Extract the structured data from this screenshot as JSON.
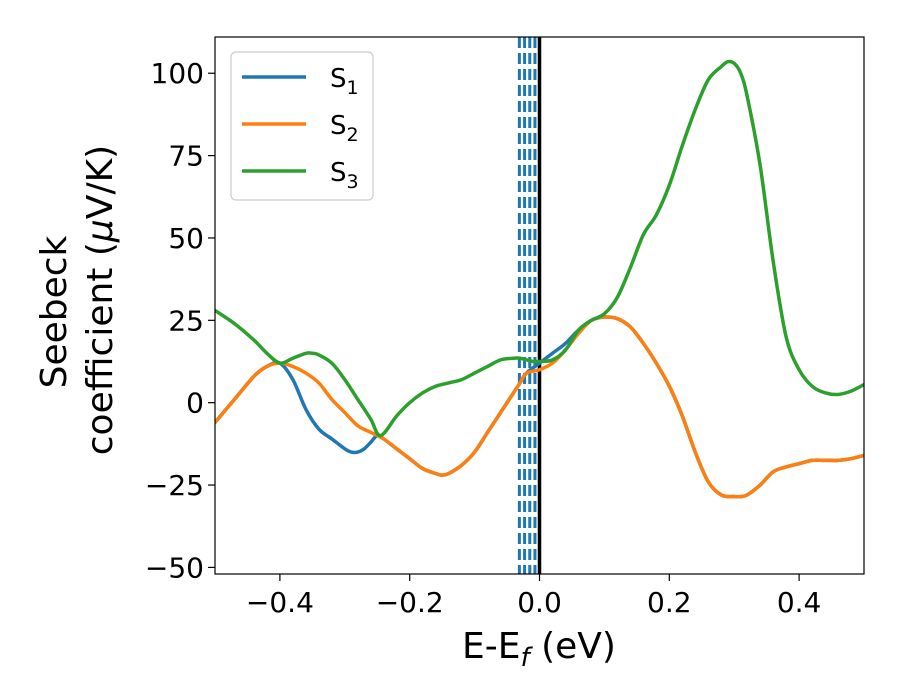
{
  "chart_data": {
    "type": "line",
    "xlabel": "E-E",
    "xlabel_sub": "f",
    "xlabel_suffix": " (eV)",
    "ylabel_line1": "Seebeck",
    "ylabel_line2": "coefficient  (",
    "ylabel_mu": "μ",
    "ylabel_unit": "V/K)",
    "xlim": [
      -0.5,
      0.5
    ],
    "ylim": [
      -52,
      111
    ],
    "xticks": [
      -0.4,
      -0.2,
      0.0,
      0.2,
      0.4
    ],
    "xtick_labels": [
      "−0.4",
      "−0.2",
      "0.0",
      "0.2",
      "0.4"
    ],
    "yticks": [
      -50,
      -25,
      0,
      25,
      50,
      75,
      100
    ],
    "ytick_labels": [
      "−50",
      "−25",
      "0",
      "25",
      "50",
      "75",
      "100"
    ],
    "grid": false,
    "legend_position": "top-left",
    "series": [
      {
        "name": "S",
        "sub": "1",
        "color": "#1f77b4",
        "x": [
          -0.5,
          -0.47,
          -0.44,
          -0.42,
          -0.4,
          -0.38,
          -0.36,
          -0.34,
          -0.32,
          -0.3,
          -0.29,
          -0.28,
          -0.27,
          -0.26,
          -0.25,
          -0.24,
          -0.22,
          -0.2,
          -0.18,
          -0.16,
          -0.15,
          -0.14,
          -0.12,
          -0.1,
          -0.08,
          -0.06,
          -0.04,
          -0.03,
          -0.02,
          0.0,
          0.02,
          0.04,
          0.06,
          0.08,
          0.1,
          0.12,
          0.14,
          0.16,
          0.18,
          0.2,
          0.22,
          0.24,
          0.26,
          0.28,
          0.3,
          0.31,
          0.32,
          0.34,
          0.36,
          0.38,
          0.4,
          0.42,
          0.44,
          0.46,
          0.48,
          0.5
        ],
        "y": [
          -6,
          1,
          8,
          11,
          12,
          7,
          -2,
          -8,
          -11,
          -14,
          -15,
          -15,
          -14,
          -12,
          -10,
          -11,
          -14,
          -17,
          -20,
          -21.5,
          -22,
          -21.5,
          -19,
          -15,
          -9,
          -3,
          3,
          6,
          9,
          12,
          15,
          18,
          22,
          25,
          26,
          25.5,
          23,
          18,
          12,
          5,
          -4,
          -15,
          -24,
          -28,
          -28.5,
          -28.5,
          -28,
          -25,
          -21,
          -19.5,
          -18.5,
          -17.5,
          -17.5,
          -17.5,
          -17,
          -16
        ]
      },
      {
        "name": "S",
        "sub": "2",
        "color": "#ff7f0e",
        "x": [
          -0.5,
          -0.47,
          -0.44,
          -0.42,
          -0.4,
          -0.38,
          -0.36,
          -0.34,
          -0.32,
          -0.3,
          -0.28,
          -0.26,
          -0.24,
          -0.22,
          -0.2,
          -0.18,
          -0.16,
          -0.15,
          -0.14,
          -0.12,
          -0.1,
          -0.08,
          -0.06,
          -0.04,
          -0.03,
          -0.02,
          0.0,
          0.02,
          0.04,
          0.06,
          0.08,
          0.1,
          0.12,
          0.14,
          0.16,
          0.18,
          0.2,
          0.22,
          0.24,
          0.26,
          0.28,
          0.3,
          0.31,
          0.32,
          0.34,
          0.36,
          0.38,
          0.4,
          0.42,
          0.44,
          0.46,
          0.48,
          0.5
        ],
        "y": [
          -6,
          1,
          8,
          11,
          12,
          11,
          9,
          6,
          1,
          -3,
          -7,
          -9,
          -11,
          -14,
          -17,
          -20,
          -21.5,
          -22,
          -21.5,
          -19,
          -15,
          -9,
          -3,
          3,
          6,
          9,
          10,
          12,
          16,
          21,
          25,
          26,
          25.5,
          23,
          18,
          12,
          5,
          -4,
          -15,
          -24,
          -28,
          -28.5,
          -28.5,
          -28,
          -25,
          -21,
          -19.5,
          -18.5,
          -17.5,
          -17.5,
          -17.5,
          -17,
          -16
        ]
      },
      {
        "name": "S",
        "sub": "3",
        "color": "#2ca02c",
        "x": [
          -0.5,
          -0.47,
          -0.44,
          -0.42,
          -0.4,
          -0.38,
          -0.36,
          -0.35,
          -0.34,
          -0.32,
          -0.3,
          -0.28,
          -0.26,
          -0.245,
          -0.22,
          -0.2,
          -0.18,
          -0.16,
          -0.14,
          -0.12,
          -0.1,
          -0.08,
          -0.06,
          -0.04,
          -0.03,
          -0.02,
          -0.01,
          0.0,
          0.02,
          0.04,
          0.06,
          0.08,
          0.1,
          0.12,
          0.14,
          0.16,
          0.18,
          0.2,
          0.22,
          0.24,
          0.26,
          0.28,
          0.29,
          0.3,
          0.31,
          0.32,
          0.34,
          0.36,
          0.38,
          0.4,
          0.42,
          0.44,
          0.46,
          0.48,
          0.5
        ],
        "y": [
          28,
          24,
          19,
          15,
          12,
          13.5,
          15,
          15,
          14.5,
          12,
          7,
          1,
          -5,
          -10,
          -4,
          0,
          3,
          5,
          6,
          7,
          9,
          11,
          13,
          13.5,
          13.5,
          13,
          12.5,
          12.5,
          13,
          16,
          22,
          25,
          27,
          32,
          41,
          51,
          57,
          66,
          78,
          89,
          98,
          102,
          103.5,
          103,
          100,
          93,
          72,
          43,
          20,
          10,
          5,
          3,
          2.5,
          3.5,
          5.5
        ]
      }
    ],
    "vlines": [
      {
        "x": -0.031,
        "color": "#1f77b4",
        "style": "dashed"
      },
      {
        "x": -0.023,
        "color": "#1f77b4",
        "style": "dashed"
      },
      {
        "x": -0.015,
        "color": "#1f77b4",
        "style": "dashed"
      },
      {
        "x": -0.007,
        "color": "#1f77b4",
        "style": "dashed"
      },
      {
        "x": 0.0,
        "color": "#000000",
        "style": "solid"
      }
    ]
  }
}
